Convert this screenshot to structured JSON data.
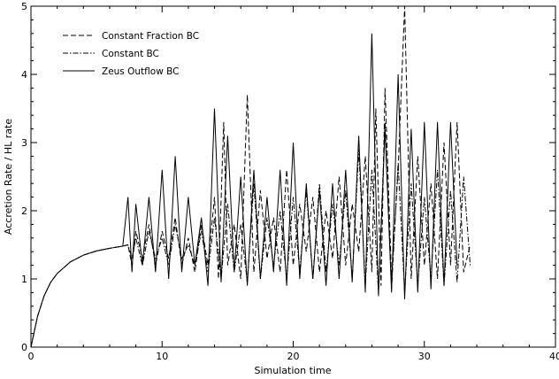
{
  "chart_data": {
    "type": "line",
    "title": "",
    "xlabel": "Simulation time",
    "ylabel": "Accretion Rate / HL rate",
    "xlim": [
      0,
      40
    ],
    "ylim": [
      0,
      5
    ],
    "x_ticks": [
      0,
      10,
      20,
      30,
      40
    ],
    "x_tick_labels": [
      "0",
      "10",
      "20",
      "30",
      "40"
    ],
    "y_ticks": [
      0,
      1,
      2,
      3,
      4,
      5
    ],
    "y_tick_labels": [
      "0",
      "1",
      "2",
      "3",
      "4",
      "5"
    ],
    "grid": false,
    "legend_position": "top-left",
    "series": [
      {
        "name": "Constant Fraction BC",
        "style": "dashed",
        "color": "#000000",
        "x": [
          0,
          0.5,
          1,
          1.5,
          2,
          3,
          4,
          5,
          6,
          7,
          7.4,
          7.7,
          8,
          8.5,
          9,
          9.5,
          10,
          10.5,
          11,
          11.5,
          12,
          12.5,
          13,
          13.5,
          14,
          14.3,
          14.7,
          15,
          15.5,
          16,
          16.5,
          17,
          17.5,
          18,
          18.5,
          19,
          19.5,
          20,
          20.5,
          21,
          21.5,
          22,
          22.5,
          23,
          23.5,
          24,
          24.5,
          25,
          25.5,
          26,
          26.3,
          26.7,
          27,
          27.5,
          28,
          28.5,
          29,
          29.5,
          30,
          30.5,
          31,
          31.5,
          32,
          32.5,
          33,
          33.5
        ],
        "y": [
          0,
          0.45,
          0.75,
          0.95,
          1.08,
          1.25,
          1.35,
          1.41,
          1.45,
          1.48,
          1.5,
          1.2,
          1.7,
          1.3,
          1.8,
          1.2,
          1.7,
          1.3,
          1.9,
          1.2,
          1.6,
          1.1,
          1.8,
          1.2,
          2.2,
          1.0,
          3.3,
          1.2,
          1.8,
          1.0,
          3.7,
          1.1,
          2.3,
          1.3,
          1.9,
          1.1,
          2.6,
          1.2,
          2.1,
          1.4,
          2.2,
          1.1,
          2.0,
          1.3,
          2.5,
          1.2,
          2.1,
          1.4,
          2.8,
          1.1,
          3.5,
          0.9,
          3.8,
          1.0,
          2.6,
          5.0,
          1.0,
          2.8,
          1.2,
          2.4,
          1.0,
          3.0,
          1.2,
          3.3,
          1.1,
          1.5
        ]
      },
      {
        "name": "Constant BC",
        "style": "dashdot",
        "color": "#000000",
        "x": [
          0,
          0.5,
          1,
          1.5,
          2,
          3,
          4,
          5,
          6,
          7,
          7.4,
          7.7,
          8,
          8.5,
          9,
          9.5,
          10,
          10.5,
          11,
          11.5,
          12,
          12.5,
          13,
          13.5,
          14,
          14.5,
          15,
          15.5,
          16,
          16.5,
          17,
          17.5,
          18,
          18.5,
          19,
          19.5,
          20,
          20.5,
          21,
          21.5,
          22,
          22.5,
          23,
          23.5,
          24,
          24.5,
          25,
          25.5,
          26,
          26.5,
          27,
          27.5,
          28,
          28.5,
          29,
          29.5,
          30,
          30.5,
          31,
          31.5,
          32,
          32.5,
          33,
          33.5
        ],
        "y": [
          0,
          0.45,
          0.75,
          0.95,
          1.08,
          1.25,
          1.35,
          1.41,
          1.45,
          1.48,
          1.5,
          1.3,
          1.6,
          1.2,
          1.7,
          1.3,
          1.6,
          1.2,
          1.8,
          1.3,
          1.5,
          1.2,
          1.7,
          1.1,
          1.9,
          1.0,
          2.1,
          1.1,
          1.8,
          0.95,
          2.4,
          1.0,
          1.9,
          1.2,
          2.0,
          1.0,
          2.2,
          1.1,
          2.3,
          1.0,
          2.4,
          1.1,
          2.1,
          1.2,
          2.3,
          1.0,
          2.9,
          0.9,
          2.6,
          0.8,
          3.3,
          0.85,
          2.7,
          0.8,
          2.4,
          0.9,
          2.2,
          1.0,
          2.6,
          0.9,
          2.3,
          0.95,
          2.5,
          1.2
        ]
      },
      {
        "name": "Zeus Outflow BC",
        "style": "solid",
        "color": "#000000",
        "x": [
          0,
          0.5,
          1,
          1.5,
          2,
          3,
          4,
          5,
          6,
          7,
          7.4,
          7.7,
          8,
          8.5,
          9,
          9.5,
          10,
          10.5,
          11,
          11.5,
          12,
          12.5,
          13,
          13.5,
          14,
          14.5,
          15,
          15.5,
          16,
          16.5,
          17,
          17.5,
          18,
          18.5,
          19,
          19.5,
          20,
          20.5,
          21,
          21.5,
          22,
          22.5,
          23,
          23.5,
          24,
          24.5,
          25,
          25.5,
          26,
          26.5,
          27,
          27.5,
          28,
          28.5,
          29,
          29.5,
          30,
          30.5,
          31,
          31.5,
          32,
          32.5
        ],
        "y": [
          0,
          0.45,
          0.75,
          0.95,
          1.08,
          1.25,
          1.35,
          1.41,
          1.45,
          1.48,
          2.2,
          1.1,
          2.1,
          1.2,
          2.2,
          1.1,
          2.6,
          1.0,
          2.8,
          1.1,
          2.2,
          1.2,
          1.9,
          0.9,
          3.5,
          0.95,
          3.1,
          1.1,
          2.5,
          0.9,
          2.6,
          1.0,
          2.2,
          1.1,
          2.6,
          0.9,
          3.0,
          1.0,
          2.4,
          1.0,
          2.3,
          0.9,
          2.4,
          1.0,
          2.6,
          0.95,
          3.1,
          0.8,
          4.6,
          0.75,
          3.2,
          0.8,
          4.0,
          0.7,
          3.2,
          0.8,
          3.3,
          0.85,
          3.3,
          0.9,
          3.3,
          1.2
        ]
      }
    ]
  }
}
